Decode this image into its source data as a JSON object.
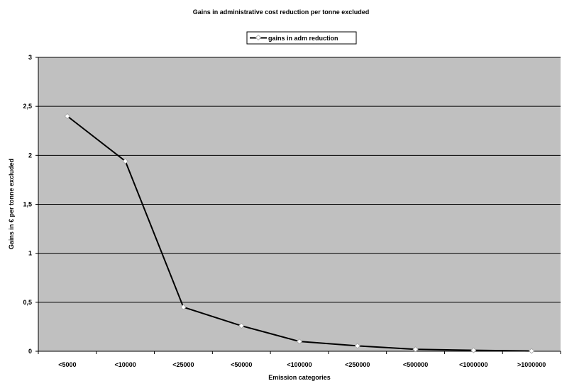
{
  "chart_data": {
    "type": "line",
    "title": "Gains in administrative cost reduction per tonne excluded",
    "xlabel": "Emission categories",
    "ylabel": "Gains in € per tonne excluded",
    "categories": [
      "<5000",
      "<10000",
      "<25000",
      "<50000",
      "<100000",
      "<250000",
      "<500000",
      "<1000000",
      ">1000000"
    ],
    "series": [
      {
        "name": "gains in adm reduction",
        "values": [
          2.4,
          1.94,
          0.45,
          0.26,
          0.1,
          0.055,
          0.02,
          0.01,
          0.003
        ]
      }
    ],
    "ylim": [
      0,
      3
    ],
    "yticks": [
      0,
      0.5,
      1,
      1.5,
      2,
      2.5,
      3
    ],
    "ytick_labels": [
      "0",
      "0,5",
      "1",
      "1,5",
      "2",
      "2,5",
      "3"
    ],
    "grid": true,
    "legend_position": "top-center",
    "colors": {
      "plot_background": "#c0c0c0",
      "line": "#000000",
      "marker_fill": "#ffffff",
      "marker_stroke": "#a0a0a0",
      "gridline": "#000000"
    }
  }
}
